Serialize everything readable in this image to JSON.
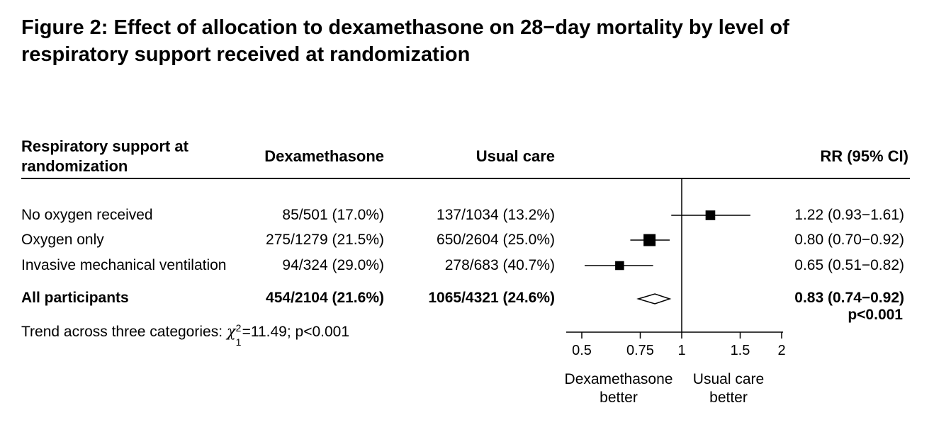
{
  "title": "Figure 2: Effect of allocation to dexamethasone on 28−day mortality by level of respiratory support received at randomization",
  "headers": {
    "category": "Respiratory support at randomization",
    "dexamethasone": "Dexamethasone",
    "usual_care": "Usual care",
    "rr": "RR (95% CI)"
  },
  "trend": {
    "prefix": "Trend across three categories: ",
    "chi_symbol": "χ",
    "sup": "2",
    "sub": "1",
    "suffix": "=11.49; p<0.001"
  },
  "chart_data": {
    "type": "forest",
    "x_scale": "log",
    "xlim": [
      0.5,
      2
    ],
    "ticks": [
      0.5,
      0.75,
      1,
      1.5,
      2
    ],
    "tick_labels": [
      "0.5",
      "0.75",
      "1",
      "1.5",
      "2"
    ],
    "reference_line": 1,
    "left_label": "Dexamethasone better",
    "right_label": "Usual care better",
    "rows": [
      {
        "label": "No oxygen received",
        "dex": "85/501 (17.0%)",
        "usual": "137/1034 (13.2%)",
        "rr": 1.22,
        "lo": 0.93,
        "hi": 1.61,
        "rr_text": "1.22 (0.93−1.61)",
        "marker": "square",
        "weight": 501
      },
      {
        "label": "Oxygen only",
        "dex": "275/1279 (21.5%)",
        "usual": "650/2604 (25.0%)",
        "rr": 0.8,
        "lo": 0.7,
        "hi": 0.92,
        "rr_text": "0.80 (0.70−0.92)",
        "marker": "square",
        "weight": 1279
      },
      {
        "label": "Invasive mechanical ventilation",
        "dex": "94/324 (29.0%)",
        "usual": "278/683 (40.7%)",
        "rr": 0.65,
        "lo": 0.51,
        "hi": 0.82,
        "rr_text": "0.65 (0.51−0.82)",
        "marker": "square",
        "weight": 324
      }
    ],
    "overall": {
      "label": "All participants",
      "dex": "454/2104 (21.6%)",
      "usual": "1065/4321 (24.6%)",
      "rr": 0.83,
      "lo": 0.74,
      "hi": 0.92,
      "rr_text": "0.83 (0.74−0.92)",
      "p_text": "p<0.001",
      "marker": "diamond"
    }
  }
}
